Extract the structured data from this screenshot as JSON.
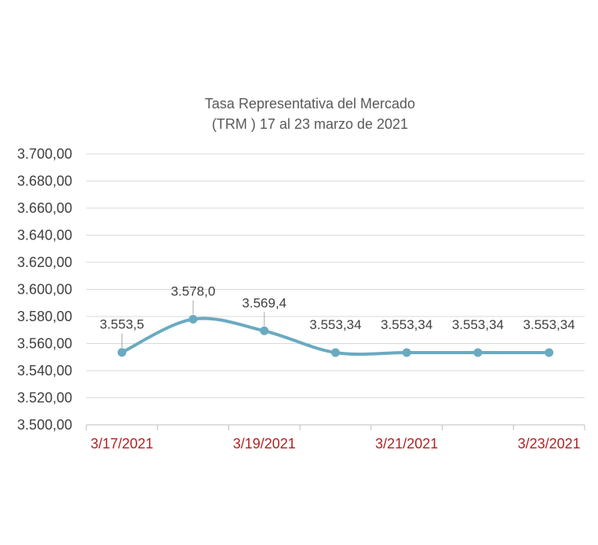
{
  "chart_data": {
    "type": "line",
    "title": [
      "Tasa Representativa del Mercado",
      "(TRM )  17 al 23 marzo de 2021"
    ],
    "x": [
      "3/17/2021",
      "3/18/2021",
      "3/19/2021",
      "3/20/2021",
      "3/21/2021",
      "3/22/2021",
      "3/23/2021"
    ],
    "x_tick_labels": [
      "3/17/2021",
      "",
      "3/19/2021",
      "",
      "3/21/2021",
      "",
      "3/23/2021"
    ],
    "series": [
      {
        "values": [
          3553.5,
          3578.0,
          3569.4,
          3553.34,
          3553.34,
          3553.34,
          3553.34
        ],
        "data_labels": [
          "3.553,5",
          "3.578,0",
          "3.569,4",
          "3.553,34",
          "3.553,34",
          "3.553,34",
          "3.553,34"
        ]
      }
    ],
    "y_tick_labels": [
      "3.500,00",
      "3.520,00",
      "3.540,00",
      "3.560,00",
      "3.580,00",
      "3.600,00",
      "3.620,00",
      "3.640,00",
      "3.660,00",
      "3.680,00",
      "3.700,00"
    ],
    "ylim": [
      3500,
      3700
    ],
    "ystep": 20,
    "grid": true,
    "smooth": true,
    "colors": {
      "line": "#6aaac0",
      "marker": "#6aaac0",
      "xtick_text": "#b22222"
    },
    "xlabel": "",
    "ylabel": ""
  }
}
